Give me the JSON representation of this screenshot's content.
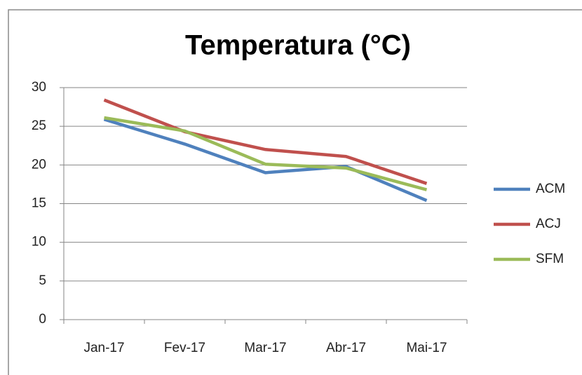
{
  "chart_data": {
    "type": "line",
    "title": "Temperatura (°C)",
    "categories": [
      "Jan-17",
      "Fev-17",
      "Mar-17",
      "Abr-17",
      "Mai-17"
    ],
    "series": [
      {
        "name": "ACM",
        "color": "#4f81bd",
        "values": [
          25.9,
          22.7,
          19.0,
          19.8,
          15.4
        ]
      },
      {
        "name": "ACJ",
        "color": "#c0504d",
        "values": [
          28.4,
          24.3,
          22.0,
          21.1,
          17.6
        ]
      },
      {
        "name": "SFM",
        "color": "#9bbb59",
        "values": [
          26.1,
          24.4,
          20.1,
          19.6,
          16.8
        ]
      }
    ],
    "ylim": [
      0,
      30
    ],
    "yticks": [
      0,
      5,
      10,
      15,
      20,
      25,
      30
    ],
    "grid": true,
    "legend": "right"
  }
}
